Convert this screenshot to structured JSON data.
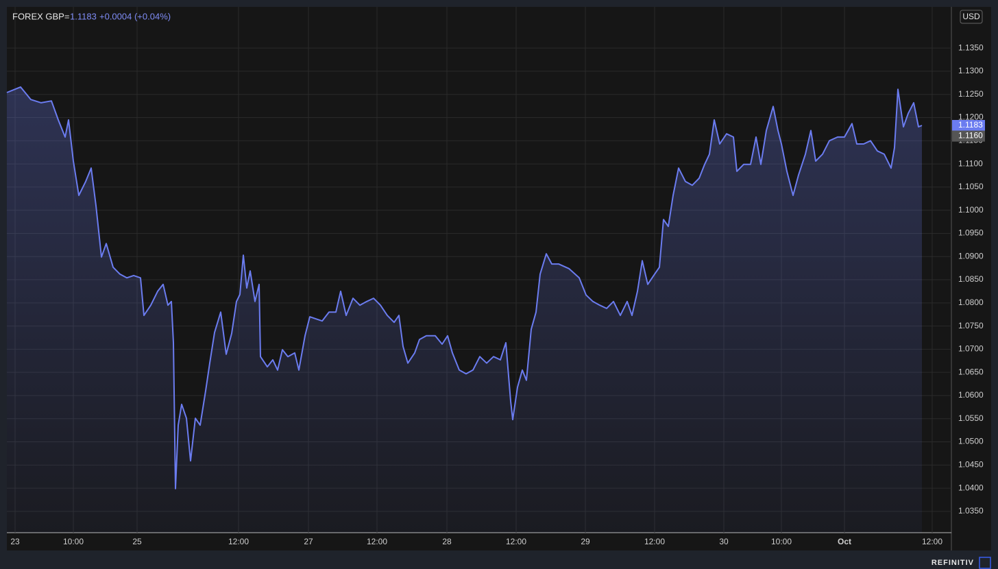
{
  "chart_data": {
    "type": "line",
    "instrument": "FOREX GBP=",
    "last": "1.1183",
    "change": "+0.0004 (+0.04%)",
    "currency": "USD",
    "brand": "REFINITIV",
    "color": "#6b7cf0",
    "grid": true,
    "x": [
      0,
      2,
      3.5,
      5,
      6.5,
      7.5,
      8.5,
      9,
      9.7,
      10.5,
      11.5,
      12.3,
      13,
      13.8,
      14.5,
      15.5,
      16.5,
      17.5,
      18.5,
      19.5,
      20,
      21,
      22,
      22.8,
      23.5,
      24,
      24.3,
      24.6,
      25,
      25.5,
      26.2,
      26.8,
      27.5,
      28.2,
      29,
      29.6,
      30.3,
      31.2,
      32,
      32.8,
      33.5,
      34,
      34.5,
      35,
      35.5,
      36.2,
      36.8,
      37,
      38,
      38.8,
      39.5,
      40.2,
      41,
      42,
      42.6,
      43.5,
      44.2,
      45,
      46,
      47,
      48,
      48.7,
      49.5,
      50.5,
      51.5,
      52.5,
      53.5,
      54.5,
      55.5,
      56.5,
      57.2,
      57.8,
      58.5,
      59.5,
      60.2,
      61.2,
      62.5,
      63.5,
      64.3,
      65,
      66,
      67,
      68,
      69,
      70,
      71,
      72,
      72.8,
      73.5,
      73.8,
      74.5,
      75.2,
      75.8,
      76.5,
      77.2,
      77.8,
      78.7,
      79.5,
      80.5,
      82,
      83.5,
      84.5,
      85.5,
      86.5,
      87.5,
      88.5,
      89.5,
      90.5,
      91.2,
      92,
      92.7,
      93.5,
      94.5,
      95.2,
      95.8,
      96.5,
      97.2,
      98,
      99,
      100,
      101,
      101.8,
      102.5,
      103.2,
      104,
      105,
      106,
      106.5,
      107.5,
      108.5,
      109.3,
      110,
      110.8,
      111.8,
      112.5,
      113,
      113.8,
      114.7,
      115.5,
      116.5,
      117.3,
      118,
      119,
      120,
      121.2,
      122.2,
      123.3,
      124,
      125,
      126,
      127,
      128,
      129,
      129.5,
      130,
      130.8,
      131.5,
      132.3,
      133,
      133.5
    ],
    "values": [
      1.1254,
      1.1266,
      1.1239,
      1.1232,
      1.1236,
      1.1195,
      1.1158,
      1.1195,
      1.1106,
      1.1032,
      1.1062,
      1.1091,
      1.101,
      1.0899,
      1.0928,
      1.0877,
      1.0862,
      1.0854,
      1.0859,
      1.0854,
      1.0773,
      1.0795,
      1.0825,
      1.084,
      1.0795,
      1.0803,
      1.0714,
      1.0399,
      1.0536,
      1.0581,
      1.0551,
      1.0459,
      1.0551,
      1.0536,
      1.061,
      1.067,
      1.0736,
      1.078,
      1.0689,
      1.0734,
      1.0803,
      1.0818,
      1.0903,
      1.0832,
      1.0869,
      1.0803,
      1.084,
      1.0684,
      1.0662,
      1.0677,
      1.0655,
      1.0699,
      1.0684,
      1.0692,
      1.0655,
      1.0729,
      1.077,
      1.0766,
      1.0761,
      1.078,
      1.078,
      1.0825,
      1.0773,
      1.081,
      1.0795,
      1.0803,
      1.081,
      1.0795,
      1.0773,
      1.0758,
      1.0773,
      1.0706,
      1.067,
      1.0692,
      1.0721,
      1.0729,
      1.0729,
      1.0711,
      1.0729,
      1.0692,
      1.0655,
      1.0647,
      1.0655,
      1.0684,
      1.067,
      1.0684,
      1.0677,
      1.0714,
      1.0588,
      1.0548,
      1.0618,
      1.0655,
      1.0633,
      1.0743,
      1.078,
      1.0862,
      1.0906,
      1.0884,
      1.0884,
      1.0874,
      1.0854,
      1.0817,
      1.0803,
      1.0795,
      1.0788,
      1.0803,
      1.0773,
      1.0803,
      1.0773,
      1.0825,
      1.0891,
      1.084,
      1.0862,
      1.0877,
      1.098,
      1.0965,
      1.1032,
      1.1091,
      1.1062,
      1.1054,
      1.1069,
      1.1099,
      1.1121,
      1.1195,
      1.1143,
      1.1165,
      1.1158,
      1.1084,
      1.1099,
      1.1099,
      1.1158,
      1.1099,
      1.1172,
      1.1224,
      1.1172,
      1.1143,
      1.1084,
      1.1032,
      1.1076,
      1.1121,
      1.1172,
      1.1106,
      1.1121,
      1.115,
      1.1158,
      1.1158,
      1.1187,
      1.1143,
      1.1143,
      1.115,
      1.1128,
      1.1121,
      1.1091,
      1.1135,
      1.1261,
      1.118,
      1.1209,
      1.1232,
      1.118,
      1.1183
    ],
    "xlim": [
      0,
      137.8
    ],
    "xticks": [
      {
        "value": 1.2,
        "label": "23"
      },
      {
        "value": 9.7,
        "label": "10:00"
      },
      {
        "value": 19,
        "label": "25"
      },
      {
        "value": 33.8,
        "label": "12:00"
      },
      {
        "value": 44,
        "label": "27"
      },
      {
        "value": 54,
        "label": "12:00"
      },
      {
        "value": 64.2,
        "label": "28"
      },
      {
        "value": 74.3,
        "label": "12:00"
      },
      {
        "value": 84.4,
        "label": "29"
      },
      {
        "value": 94.5,
        "label": "12:00"
      },
      {
        "value": 104.6,
        "label": "30"
      },
      {
        "value": 113,
        "label": "10:00"
      },
      {
        "value": 122.2,
        "label": "Oct"
      },
      {
        "value": 135,
        "label": "12:00"
      }
    ],
    "ylim": [
      1.0304,
      1.1439
    ],
    "yticks": [
      {
        "value": 1.035,
        "label": "1.0350"
      },
      {
        "value": 1.04,
        "label": "1.0400"
      },
      {
        "value": 1.045,
        "label": "1.0450"
      },
      {
        "value": 1.05,
        "label": "1.0500"
      },
      {
        "value": 1.055,
        "label": "1.0550"
      },
      {
        "value": 1.06,
        "label": "1.0600"
      },
      {
        "value": 1.065,
        "label": "1.0650"
      },
      {
        "value": 1.07,
        "label": "1.0700"
      },
      {
        "value": 1.075,
        "label": "1.0750"
      },
      {
        "value": 1.08,
        "label": "1.0800"
      },
      {
        "value": 1.085,
        "label": "1.0850"
      },
      {
        "value": 1.09,
        "label": "1.0900"
      },
      {
        "value": 1.095,
        "label": "1.0950"
      },
      {
        "value": 1.1,
        "label": "1.1000"
      },
      {
        "value": 1.105,
        "label": "1.1050"
      },
      {
        "value": 1.11,
        "label": "1.1100"
      },
      {
        "value": 1.115,
        "label": "1.1150"
      },
      {
        "value": 1.12,
        "label": "1.1200"
      },
      {
        "value": 1.125,
        "label": "1.1250"
      },
      {
        "value": 1.13,
        "label": "1.1300"
      },
      {
        "value": 1.135,
        "label": "1.1350"
      }
    ],
    "price_tags": [
      {
        "value": 1.1183,
        "label": "1.1183",
        "color": "#6b7cf0"
      },
      {
        "value": 1.116,
        "label": "1.1160",
        "color": "#555555"
      }
    ]
  }
}
